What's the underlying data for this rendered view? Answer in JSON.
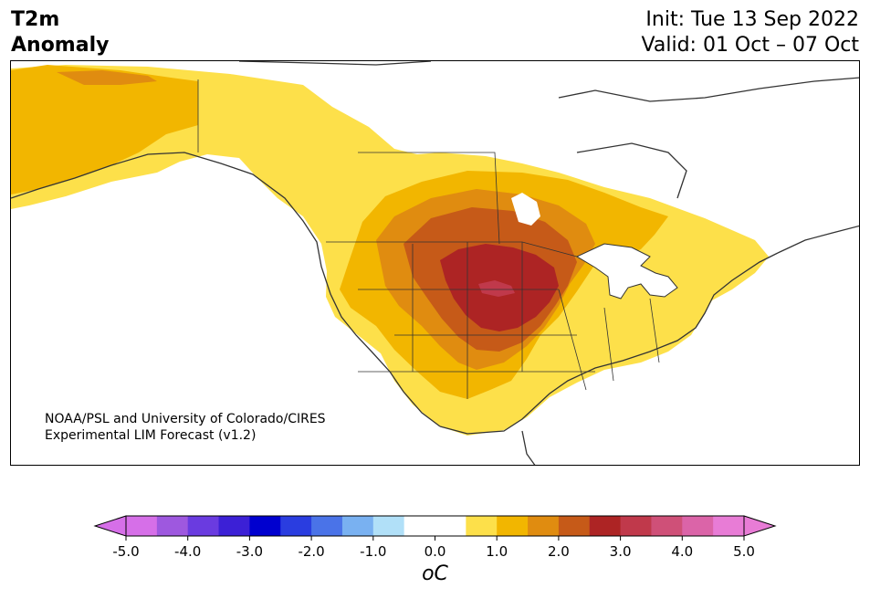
{
  "header": {
    "title_line1": "T2m",
    "title_line2": "Anomaly",
    "init": "Init: Tue 13 Sep 2022",
    "valid": "Valid: 01 Oct – 07 Oct"
  },
  "credit": {
    "line1": "NOAA/PSL and University of Colorado/CIRES",
    "line2": "Experimental LIM Forecast (v1.2)"
  },
  "colorbar": {
    "unit": "oC",
    "ticks": [
      "-5.0",
      "-4.0",
      "-3.0",
      "-2.0",
      "-1.0",
      "0.0",
      "1.0",
      "2.0",
      "3.0",
      "4.0",
      "5.0"
    ],
    "colors": [
      "#d66fe8",
      "#9e58df",
      "#6a3be0",
      "#3c20d6",
      "#0000cf",
      "#2a3de0",
      "#4a73e8",
      "#79b1f1",
      "#b1e0f8",
      "#ffffff",
      "#ffffff",
      "#fde04a",
      "#f2b600",
      "#e08c10",
      "#c65a18",
      "#ad2424",
      "#c0394b",
      "#cf5078",
      "#db64a8",
      "#e87cd6"
    ],
    "under_color": "#d66fe8",
    "over_color": "#e87cd6"
  },
  "map": {
    "region": "North America",
    "levels": {
      "light": "#fde04a",
      "gold": "#f2b600",
      "orange": "#e08c10",
      "burnt": "#c65a18",
      "red": "#ad2424",
      "crimson": "#c0394b",
      "pink": "#db64a8"
    }
  }
}
